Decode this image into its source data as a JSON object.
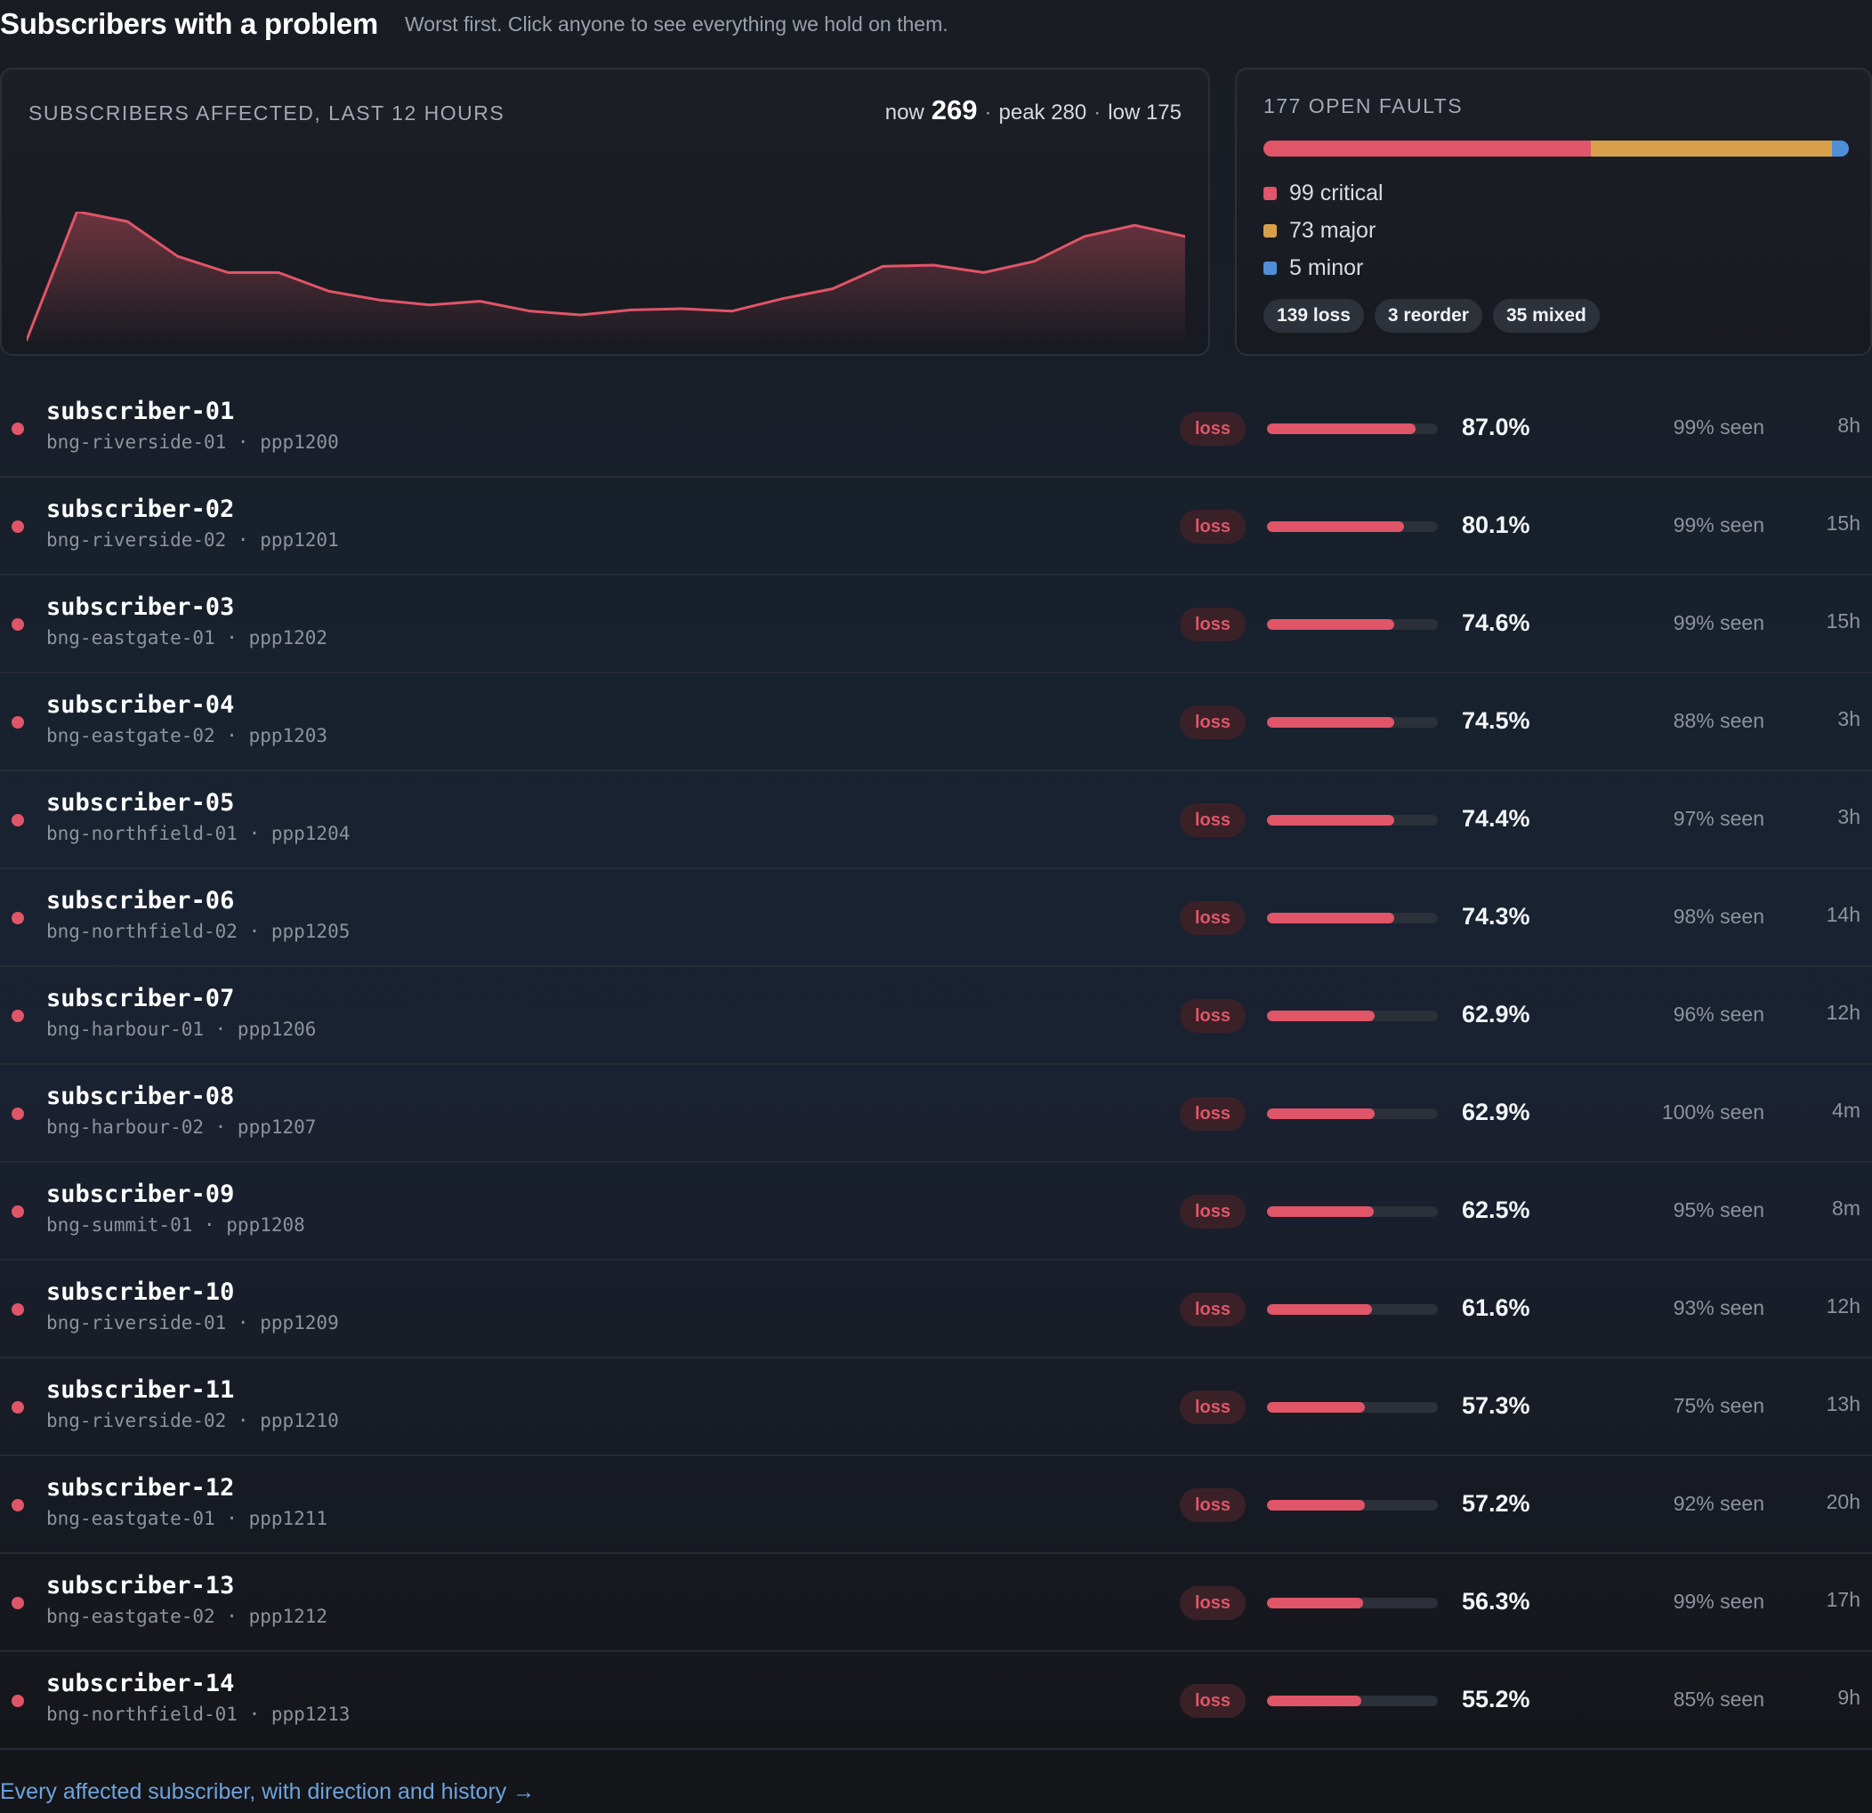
{
  "header": {
    "title": "Subscribers with a problem",
    "subtitle": "Worst first. Click anyone to see everything we hold on them."
  },
  "trend": {
    "label": "SUBSCRIBERS AFFECTED, LAST 12 HOURS",
    "now_prefix": "now",
    "now_value": "269",
    "peak_text": "peak 280",
    "low_text": "low 175",
    "separator": "·",
    "chart_data": {
      "type": "area",
      "title": "SUBSCRIBERS AFFECTED, LAST 12 HOURS",
      "series": [
        {
          "values": [
            175,
            278,
            270,
            242,
            229,
            229,
            214,
            207,
            203,
            206,
            198,
            195,
            199,
            200,
            198,
            208,
            216,
            234,
            235,
            229,
            238,
            258,
            267,
            258
          ]
        }
      ],
      "ylim": [
        165,
        285
      ],
      "color": "#e05568",
      "grid": false
    }
  },
  "faults": {
    "label": "177 OPEN FAULTS",
    "total": 177,
    "segments": [
      {
        "key": "critical",
        "count": 99,
        "text": "99 critical",
        "color": "#e05568"
      },
      {
        "key": "major",
        "count": 73,
        "text": "73 major",
        "color": "#d9a04b"
      },
      {
        "key": "minor",
        "count": 5,
        "text": "5 minor",
        "color": "#4f8fd6"
      }
    ],
    "pills": [
      "139 loss",
      "3 reorder",
      "35 mixed"
    ]
  },
  "colors": {
    "critical": "#e05568",
    "badge_bg": "#3a2128",
    "badge_text": "#e05568"
  },
  "subscribers": [
    {
      "name": "subscriber-01",
      "detail": "bng-riverside-01 · ppp1200",
      "type": "loss",
      "pct_value": 87.0,
      "pct": "87.0%",
      "seen": "99% seen",
      "age": "8h"
    },
    {
      "name": "subscriber-02",
      "detail": "bng-riverside-02 · ppp1201",
      "type": "loss",
      "pct_value": 80.1,
      "pct": "80.1%",
      "seen": "99% seen",
      "age": "15h"
    },
    {
      "name": "subscriber-03",
      "detail": "bng-eastgate-01 · ppp1202",
      "type": "loss",
      "pct_value": 74.6,
      "pct": "74.6%",
      "seen": "99% seen",
      "age": "15h"
    },
    {
      "name": "subscriber-04",
      "detail": "bng-eastgate-02 · ppp1203",
      "type": "loss",
      "pct_value": 74.5,
      "pct": "74.5%",
      "seen": "88% seen",
      "age": "3h"
    },
    {
      "name": "subscriber-05",
      "detail": "bng-northfield-01 · ppp1204",
      "type": "loss",
      "pct_value": 74.4,
      "pct": "74.4%",
      "seen": "97% seen",
      "age": "3h"
    },
    {
      "name": "subscriber-06",
      "detail": "bng-northfield-02 · ppp1205",
      "type": "loss",
      "pct_value": 74.3,
      "pct": "74.3%",
      "seen": "98% seen",
      "age": "14h"
    },
    {
      "name": "subscriber-07",
      "detail": "bng-harbour-01 · ppp1206",
      "type": "loss",
      "pct_value": 62.9,
      "pct": "62.9%",
      "seen": "96% seen",
      "age": "12h"
    },
    {
      "name": "subscriber-08",
      "detail": "bng-harbour-02 · ppp1207",
      "type": "loss",
      "pct_value": 62.9,
      "pct": "62.9%",
      "seen": "100% seen",
      "age": "4m"
    },
    {
      "name": "subscriber-09",
      "detail": "bng-summit-01 · ppp1208",
      "type": "loss",
      "pct_value": 62.5,
      "pct": "62.5%",
      "seen": "95% seen",
      "age": "8m"
    },
    {
      "name": "subscriber-10",
      "detail": "bng-riverside-01 · ppp1209",
      "type": "loss",
      "pct_value": 61.6,
      "pct": "61.6%",
      "seen": "93% seen",
      "age": "12h"
    },
    {
      "name": "subscriber-11",
      "detail": "bng-riverside-02 · ppp1210",
      "type": "loss",
      "pct_value": 57.3,
      "pct": "57.3%",
      "seen": "75% seen",
      "age": "13h"
    },
    {
      "name": "subscriber-12",
      "detail": "bng-eastgate-01 · ppp1211",
      "type": "loss",
      "pct_value": 57.2,
      "pct": "57.2%",
      "seen": "92% seen",
      "age": "20h"
    },
    {
      "name": "subscriber-13",
      "detail": "bng-eastgate-02 · ppp1212",
      "type": "loss",
      "pct_value": 56.3,
      "pct": "56.3%",
      "seen": "99% seen",
      "age": "17h"
    },
    {
      "name": "subscriber-14",
      "detail": "bng-northfield-01 · ppp1213",
      "type": "loss",
      "pct_value": 55.2,
      "pct": "55.2%",
      "seen": "85% seen",
      "age": "9h"
    }
  ],
  "footer": {
    "link_text": "Every affected subscriber, with direction and history →"
  }
}
